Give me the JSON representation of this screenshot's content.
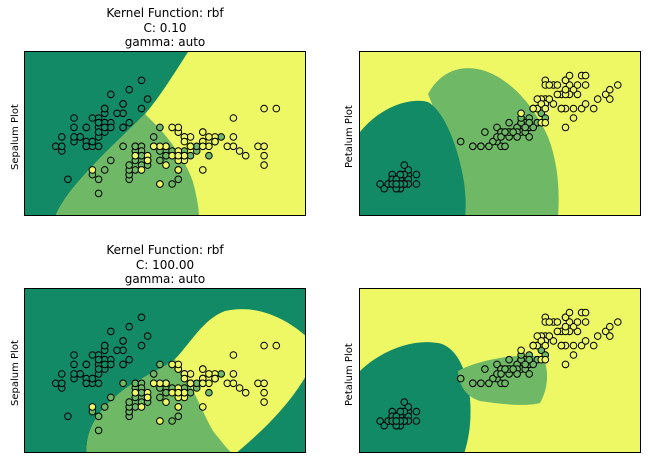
{
  "colors": {
    "dark_green": "#138a66",
    "mid_green": "#6eb866",
    "yellow": "#eef865",
    "edge": "#000000"
  },
  "titles": {
    "top": [
      "Kernel Function: rbf",
      "C: 0.10",
      "gamma: auto"
    ],
    "bottom": [
      "Kernel Function: rbf",
      "C: 100.00",
      "gamma: auto"
    ]
  },
  "ylabels": {
    "sepal": "Sepalum Plot",
    "petal": "Petalum Plot"
  },
  "chart_data": [
    {
      "type": "scatter",
      "title": "Kernel Function: rbf\nC: 0.10\ngamma: auto",
      "ylabel": "Sepalum Plot",
      "feature_pair": "sepal",
      "background": "decision regions (3 classes)",
      "xlim": [
        3.8,
        8.4
      ],
      "ylim": [
        1.5,
        5.0
      ],
      "grid": false,
      "series": [
        {
          "class": 0,
          "color": "#138a66",
          "x": [
            5.1,
            4.9,
            4.7,
            4.6,
            5.0,
            5.4,
            4.6,
            5.0,
            4.4,
            4.9,
            5.4,
            4.8,
            4.8,
            4.3,
            5.8,
            5.7,
            5.4,
            5.1,
            5.7,
            5.1,
            5.4,
            5.1,
            4.6,
            5.1,
            4.8,
            5.0,
            5.0,
            5.2,
            5.2,
            4.7,
            4.8,
            5.4,
            5.2,
            5.5,
            4.9,
            5.0,
            5.5,
            4.9,
            4.4,
            5.1,
            5.0,
            4.5,
            4.4,
            5.0,
            5.1,
            4.8,
            5.1,
            4.6,
            5.3,
            5.0
          ],
          "y": [
            3.5,
            3.0,
            3.2,
            3.1,
            3.6,
            3.9,
            3.4,
            3.4,
            2.9,
            3.1,
            3.7,
            3.4,
            3.0,
            3.0,
            4.0,
            4.4,
            3.9,
            3.5,
            3.8,
            3.8,
            3.4,
            3.7,
            3.6,
            3.3,
            3.4,
            3.0,
            3.4,
            3.5,
            3.4,
            3.2,
            3.1,
            3.4,
            4.1,
            4.2,
            3.1,
            3.2,
            3.5,
            3.6,
            3.0,
            3.4,
            3.5,
            2.3,
            3.2,
            3.5,
            3.8,
            3.0,
            3.8,
            3.2,
            3.7,
            3.3
          ]
        },
        {
          "class": 1,
          "color": "#6eb866",
          "x": [
            7.0,
            6.4,
            6.9,
            5.5,
            6.5,
            5.7,
            6.3,
            4.9,
            6.6,
            5.2,
            5.0,
            5.9,
            6.0,
            6.1,
            5.6,
            6.7,
            5.6,
            5.8,
            6.2,
            5.6,
            5.9,
            6.1,
            6.3,
            6.1,
            6.4,
            6.6,
            6.8,
            6.7,
            6.0,
            5.7,
            5.5,
            5.5,
            5.8,
            6.0,
            5.4,
            6.0,
            6.7,
            6.3,
            5.6,
            5.5,
            5.5,
            6.1,
            5.8,
            5.0,
            5.6,
            5.7,
            5.7,
            6.2,
            5.1,
            5.7
          ],
          "y": [
            3.2,
            3.2,
            3.1,
            2.3,
            2.8,
            2.8,
            3.3,
            2.4,
            2.9,
            2.7,
            2.0,
            3.0,
            2.2,
            2.9,
            2.9,
            3.1,
            3.0,
            2.7,
            2.2,
            2.5,
            3.2,
            2.8,
            2.5,
            2.8,
            2.9,
            3.0,
            2.8,
            3.0,
            2.9,
            2.6,
            2.4,
            2.4,
            2.7,
            2.7,
            3.0,
            3.4,
            3.1,
            2.3,
            3.0,
            2.5,
            2.6,
            3.0,
            2.6,
            2.3,
            2.7,
            3.0,
            2.9,
            2.9,
            2.5,
            2.8
          ]
        },
        {
          "class": 2,
          "color": "#eef865",
          "x": [
            6.3,
            5.8,
            7.1,
            6.3,
            6.5,
            7.6,
            4.9,
            7.3,
            6.7,
            7.2,
            6.5,
            6.4,
            6.8,
            5.7,
            5.8,
            6.4,
            6.5,
            7.7,
            7.7,
            6.0,
            6.9,
            5.6,
            7.7,
            6.3,
            6.7,
            7.2,
            6.2,
            6.1,
            6.4,
            7.2,
            7.4,
            7.9,
            6.4,
            6.3,
            6.1,
            7.7,
            6.3,
            6.4,
            6.0,
            6.9,
            6.7,
            6.9,
            5.8,
            6.8,
            6.7,
            6.7,
            6.3,
            6.5,
            6.2,
            5.9
          ],
          "y": [
            3.3,
            2.7,
            3.0,
            2.9,
            3.0,
            3.0,
            2.5,
            2.9,
            2.5,
            3.6,
            3.2,
            2.7,
            3.0,
            2.5,
            2.8,
            3.2,
            3.0,
            3.8,
            2.6,
            2.2,
            3.2,
            2.8,
            2.8,
            2.7,
            3.3,
            3.2,
            2.8,
            3.0,
            2.8,
            3.0,
            2.8,
            3.8,
            2.8,
            2.8,
            2.6,
            3.0,
            3.4,
            3.1,
            3.0,
            3.1,
            3.1,
            3.1,
            2.7,
            3.2,
            3.3,
            3.0,
            2.5,
            3.0,
            3.4,
            3.0
          ]
        }
      ]
    },
    {
      "type": "scatter",
      "title": "",
      "ylabel": "Petalum Plot",
      "feature_pair": "petal",
      "background": "decision regions (3 classes)",
      "xlim": [
        0.5,
        7.5
      ],
      "ylim": [
        -0.5,
        3.0
      ],
      "grid": false,
      "series": [
        {
          "class": 0,
          "color": "#138a66",
          "x": [
            1.4,
            1.4,
            1.3,
            1.5,
            1.4,
            1.7,
            1.4,
            1.5,
            1.4,
            1.5,
            1.5,
            1.6,
            1.4,
            1.1,
            1.2,
            1.5,
            1.3,
            1.4,
            1.7,
            1.5,
            1.7,
            1.5,
            1.0,
            1.7,
            1.9,
            1.6,
            1.6,
            1.5,
            1.4,
            1.6,
            1.6,
            1.5,
            1.5,
            1.4,
            1.5,
            1.2,
            1.3,
            1.4,
            1.3,
            1.5,
            1.3,
            1.3,
            1.3,
            1.6,
            1.9,
            1.4,
            1.6,
            1.4,
            1.5,
            1.4
          ],
          "y": [
            0.2,
            0.2,
            0.2,
            0.2,
            0.2,
            0.4,
            0.3,
            0.2,
            0.2,
            0.1,
            0.2,
            0.2,
            0.1,
            0.1,
            0.2,
            0.4,
            0.4,
            0.3,
            0.3,
            0.3,
            0.2,
            0.4,
            0.2,
            0.5,
            0.2,
            0.2,
            0.4,
            0.2,
            0.2,
            0.2,
            0.2,
            0.4,
            0.1,
            0.2,
            0.2,
            0.2,
            0.2,
            0.1,
            0.2,
            0.2,
            0.3,
            0.3,
            0.2,
            0.6,
            0.4,
            0.3,
            0.2,
            0.2,
            0.2,
            0.2
          ]
        },
        {
          "class": 1,
          "color": "#6eb866",
          "x": [
            4.7,
            4.5,
            4.9,
            4.0,
            4.6,
            4.5,
            4.7,
            3.3,
            4.6,
            3.9,
            3.5,
            4.2,
            4.0,
            4.7,
            3.6,
            4.4,
            4.5,
            4.1,
            4.5,
            3.9,
            4.8,
            4.0,
            4.9,
            4.7,
            4.3,
            4.4,
            4.8,
            5.0,
            4.5,
            3.5,
            3.8,
            3.7,
            3.9,
            5.1,
            4.5,
            4.5,
            4.7,
            4.4,
            4.1,
            4.0,
            4.4,
            4.6,
            4.0,
            3.3,
            4.2,
            4.2,
            4.2,
            4.3,
            3.0,
            4.1
          ],
          "y": [
            1.4,
            1.5,
            1.5,
            1.3,
            1.5,
            1.3,
            1.6,
            1.0,
            1.3,
            1.4,
            1.0,
            1.5,
            1.0,
            1.4,
            1.3,
            1.4,
            1.5,
            1.0,
            1.5,
            1.1,
            1.8,
            1.3,
            1.5,
            1.2,
            1.3,
            1.4,
            1.4,
            1.7,
            1.5,
            1.0,
            1.1,
            1.0,
            1.2,
            1.6,
            1.5,
            1.6,
            1.5,
            1.3,
            1.3,
            1.3,
            1.2,
            1.4,
            1.2,
            1.0,
            1.3,
            1.2,
            1.3,
            1.3,
            1.1,
            1.3
          ]
        },
        {
          "class": 2,
          "color": "#eef865",
          "x": [
            6.0,
            5.1,
            5.9,
            5.6,
            5.8,
            6.6,
            4.5,
            6.3,
            5.8,
            6.1,
            5.1,
            5.3,
            5.5,
            5.0,
            5.1,
            5.3,
            5.5,
            6.7,
            6.9,
            5.0,
            5.7,
            4.9,
            6.7,
            4.9,
            5.7,
            6.0,
            4.8,
            4.9,
            5.6,
            5.8,
            6.1,
            6.4,
            5.6,
            5.1,
            5.6,
            6.1,
            5.6,
            5.5,
            4.8,
            5.4,
            5.6,
            5.1,
            5.1,
            5.9,
            5.7,
            5.2,
            5.0,
            5.2,
            5.4,
            5.1
          ],
          "y": [
            2.5,
            1.9,
            2.1,
            1.8,
            2.2,
            2.1,
            1.7,
            1.8,
            1.8,
            2.5,
            2.0,
            1.9,
            2.1,
            2.0,
            2.4,
            2.3,
            1.8,
            2.2,
            2.3,
            1.5,
            2.3,
            2.0,
            2.0,
            1.8,
            2.1,
            1.8,
            1.8,
            1.8,
            2.1,
            1.6,
            1.9,
            2.0,
            2.2,
            1.5,
            1.4,
            2.3,
            2.4,
            1.8,
            1.8,
            2.1,
            2.4,
            2.3,
            1.9,
            2.3,
            2.5,
            2.3,
            1.9,
            2.0,
            2.3,
            1.8
          ]
        }
      ]
    },
    {
      "type": "scatter",
      "title": "Kernel Function: rbf\nC: 100.00\ngamma: auto",
      "ylabel": "Sepalum Plot",
      "feature_pair": "sepal",
      "background": "decision regions (3 classes)",
      "xlim": [
        3.8,
        8.4
      ],
      "ylim": [
        1.5,
        5.0
      ],
      "grid": false,
      "series": "same points as sepal plot above"
    },
    {
      "type": "scatter",
      "title": "",
      "ylabel": "Petalum Plot",
      "feature_pair": "petal",
      "background": "decision regions (3 classes)",
      "xlim": [
        0.5,
        7.5
      ],
      "ylim": [
        -0.5,
        3.0
      ],
      "grid": false,
      "series": "same points as petal plot above"
    }
  ]
}
